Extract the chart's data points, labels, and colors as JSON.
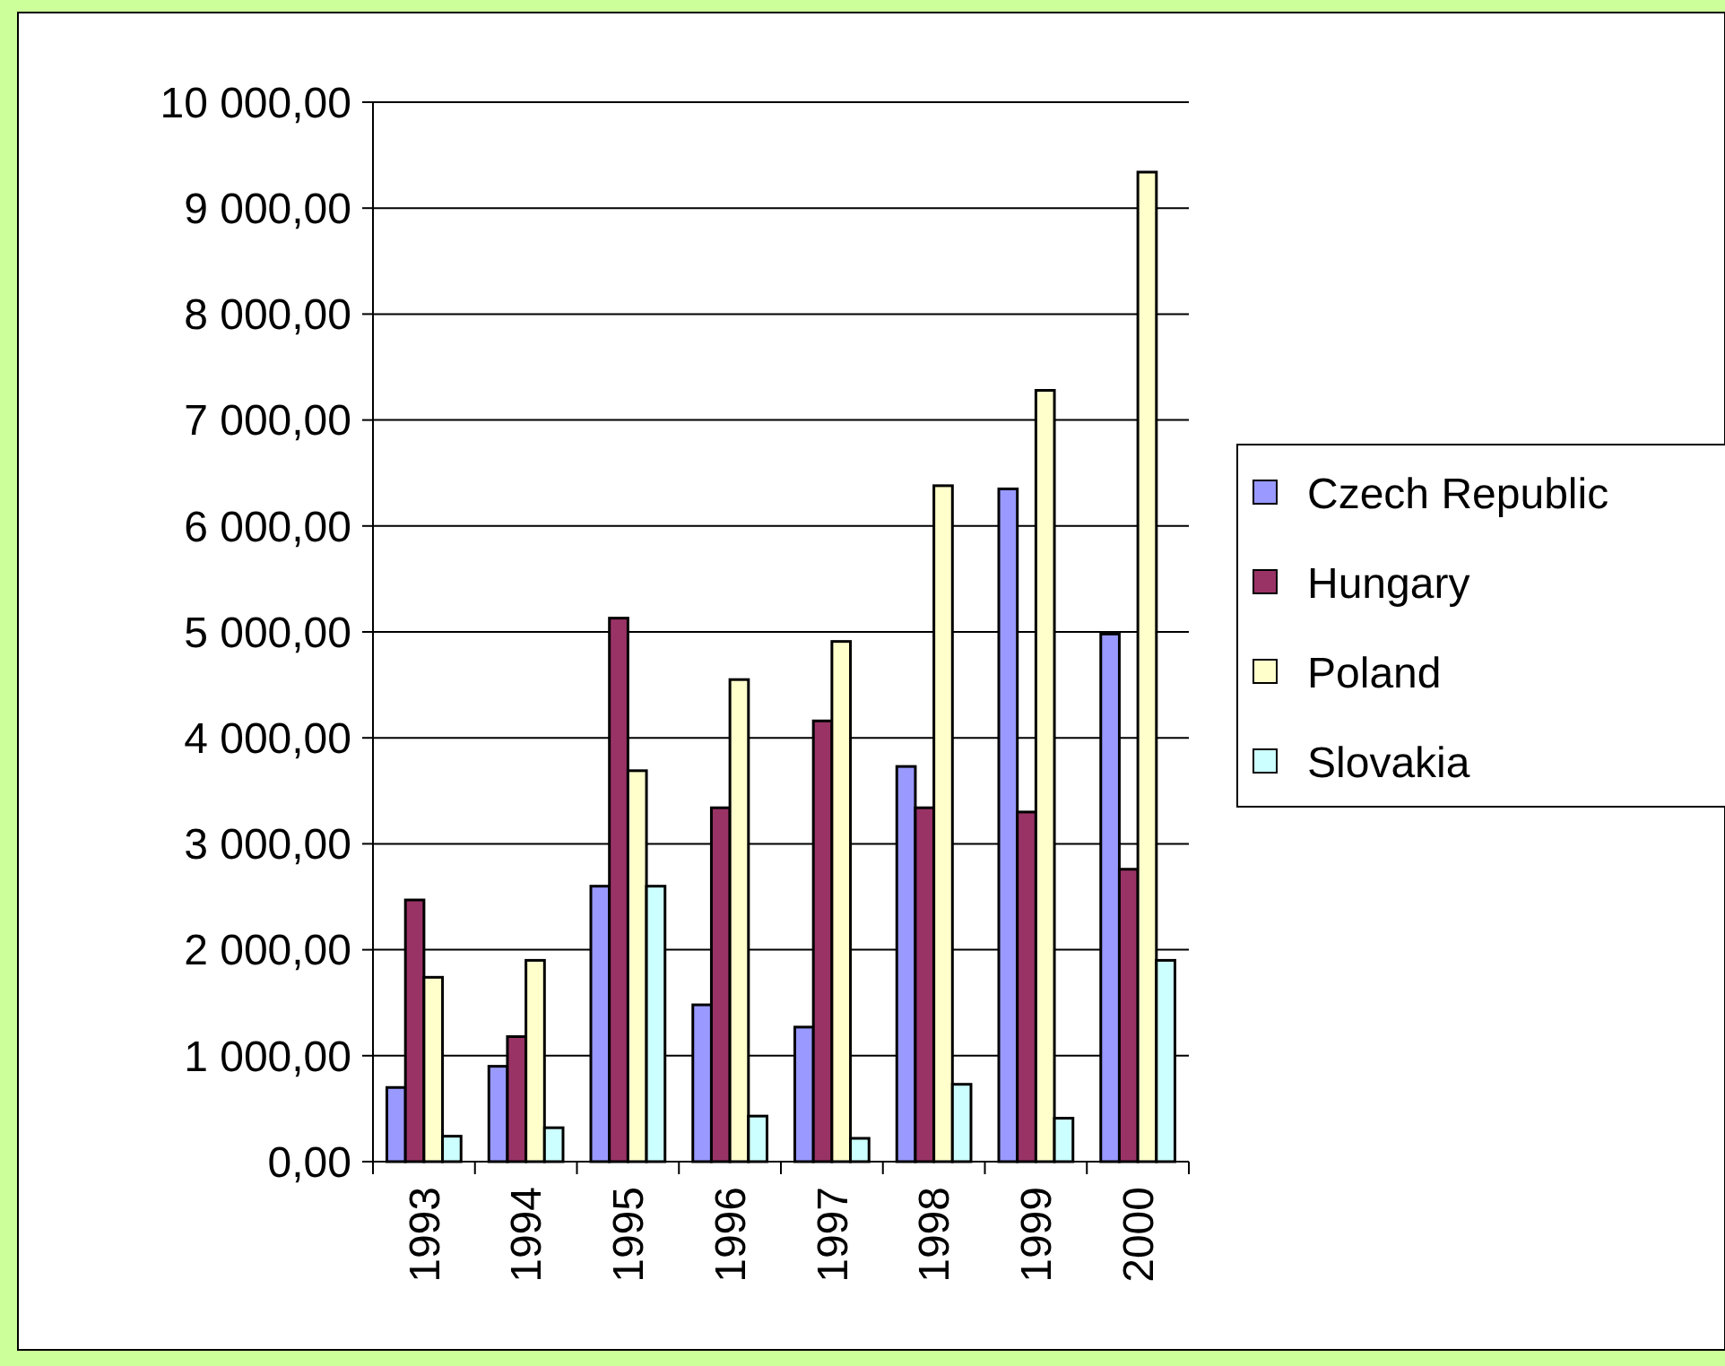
{
  "chart_data": {
    "type": "bar",
    "categories": [
      "1993",
      "1994",
      "1995",
      "1996",
      "1997",
      "1998",
      "1999",
      "2000"
    ],
    "series": [
      {
        "name": "Czech Republic",
        "color": "#9999ff",
        "values": [
          700,
          900,
          2600,
          1480,
          1270,
          3730,
          6350,
          4980
        ]
      },
      {
        "name": "Hungary",
        "color": "#993366",
        "values": [
          2470,
          1180,
          5130,
          3340,
          4160,
          3340,
          3300,
          2760
        ]
      },
      {
        "name": "Poland",
        "color": "#ffffcc",
        "values": [
          1740,
          1900,
          3690,
          4550,
          4910,
          6380,
          7280,
          9340
        ]
      },
      {
        "name": "Slovakia",
        "color": "#ccffff",
        "values": [
          240,
          320,
          2600,
          430,
          220,
          730,
          410,
          1900
        ]
      }
    ],
    "ylim": [
      0,
      10000
    ],
    "yticks": [
      {
        "value": 0,
        "label": "0,00"
      },
      {
        "value": 1000,
        "label": "1 000,00"
      },
      {
        "value": 2000,
        "label": "2 000,00"
      },
      {
        "value": 3000,
        "label": "3 000,00"
      },
      {
        "value": 4000,
        "label": "4 000,00"
      },
      {
        "value": 5000,
        "label": "5 000,00"
      },
      {
        "value": 6000,
        "label": "6 000,00"
      },
      {
        "value": 7000,
        "label": "7 000,00"
      },
      {
        "value": 8000,
        "label": "8 000,00"
      },
      {
        "value": 9000,
        "label": "9 000,00"
      },
      {
        "value": 10000,
        "label": "10 000,00"
      }
    ],
    "grid": "y",
    "legend": "right"
  }
}
